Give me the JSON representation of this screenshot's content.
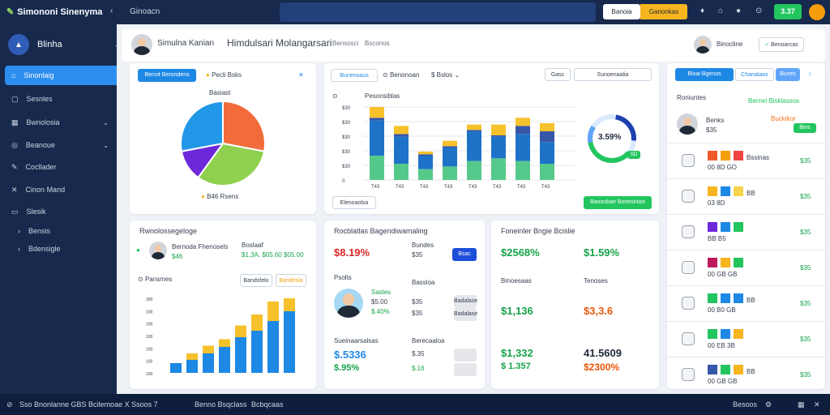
{
  "topbar": {
    "app_title": "Simononi Sinenyma",
    "crumb": "Ginoacn",
    "btn_primary": "Banoia",
    "btn_accent": "Ganonkas",
    "counter": "3.37"
  },
  "sidebar": {
    "title": "Blinha",
    "items": [
      {
        "label": "Sinonlaig",
        "icon": "home-icon"
      },
      {
        "label": "Sesnles",
        "icon": "square-icon"
      },
      {
        "label": "Bwnolosia",
        "icon": "chart-icon"
      },
      {
        "label": "Beanoue",
        "icon": "globe-icon"
      },
      {
        "label": "Cocllader",
        "icon": "wrench-icon"
      },
      {
        "label": "Cinon Mand",
        "icon": "tools-icon"
      },
      {
        "label": "Slesik",
        "icon": "doc-icon"
      },
      {
        "label": "Bensis",
        "icon": "chevron-right-icon"
      },
      {
        "label": "Bdensigle",
        "icon": "chevron-right-icon"
      }
    ]
  },
  "header": {
    "name": "Simulna Kanian",
    "title": "Himdulsari Molangarsari",
    "sub1": "Bensosci",
    "sub2": "Bsconos",
    "user": "Binocline",
    "action": "Benoarcas"
  },
  "pie_card": {
    "tab": "Benvit Berondens",
    "legend_top": "Pecli Bsks",
    "pie_title": "Basiast",
    "legend_bottom": "B46 Rsens",
    "chart_data": {
      "type": "pie",
      "slices": [
        {
          "value": 28,
          "color": "#f26b3a"
        },
        {
          "value": 32,
          "color": "#8fd14f"
        },
        {
          "value": 12,
          "color": "#6d28d9"
        },
        {
          "value": 28,
          "color": "#2197e8"
        }
      ]
    }
  },
  "bar_card": {
    "tab": "Bunenoaus",
    "filter1": "Benonoan",
    "filter2": "Bslos",
    "tag1": "Gasc",
    "tag2": "Sunoenaalia",
    "ylabel": "Pesonsiblas",
    "yticks": [
      "$30",
      "$30",
      "$30",
      "$30",
      "$30",
      "0"
    ],
    "xticks": [
      "T43",
      "T43",
      "T43",
      "T43",
      "T43",
      "T43",
      "T43",
      "T43"
    ],
    "btn_left": "Elenoaolsa",
    "btn_right": "Banonbae Bonesinise",
    "gauge": "3.59%",
    "gauge_badge": "SD",
    "chart_data": {
      "type": "bar",
      "categories": [
        "T43",
        "T43",
        "T43",
        "T43",
        "T43",
        "T43",
        "T43",
        "T43"
      ],
      "series": [
        {
          "values": [
            18,
            12,
            8,
            10,
            14,
            16,
            14,
            12
          ],
          "color": "#55c98a"
        },
        {
          "values": [
            26,
            20,
            10,
            14,
            22,
            16,
            20,
            16
          ],
          "color": "#1e73c9"
        },
        {
          "values": [
            2,
            2,
            1,
            1,
            1,
            1,
            6,
            8
          ],
          "color": "#3657a8"
        },
        {
          "values": [
            8,
            6,
            2,
            4,
            4,
            8,
            6,
            6
          ],
          "color": "#f6c12b"
        }
      ]
    }
  },
  "right_panel": {
    "tab1": "Bloai Bgenos",
    "tab2": "Chanalaos",
    "tab3": "Bunes",
    "head_left": "Roniuntes",
    "head_right": "Bernel Bisklassos",
    "person_name": "Benks",
    "person_value": "$35",
    "person_orange": "Buckikor",
    "person_badge": "Bins",
    "rows": [
      {
        "colors": [
          "#ef5a2a",
          "#f59e0b",
          "#ef4444"
        ],
        "vals": "00 8D GO",
        "extra": "Bssinas",
        "amt": "$35"
      },
      {
        "colors": [
          "#f6b51e",
          "#1e88e5",
          "#f6d34a"
        ],
        "vals": "03 8D",
        "extra": "BB",
        "amt": "$35"
      },
      {
        "colors": [
          "#6d28d9",
          "#1e88e5",
          "#22c55e"
        ],
        "vals": "BB B5",
        "extra": "",
        "amt": "$35"
      },
      {
        "colors": [
          "#be185d",
          "#f6b51e",
          "#22c55e"
        ],
        "vals": "00 GB GB",
        "extra": "",
        "amt": "$35"
      },
      {
        "colors": [
          "#22c55e",
          "#1e88e5",
          "#1e88e5"
        ],
        "vals": "00 B0 GB",
        "extra": "BB",
        "amt": "$35"
      },
      {
        "colors": [
          "#22c55e",
          "#1e88e5",
          "#f6b51e"
        ],
        "vals": "00 EB 3B",
        "extra": "",
        "amt": "$35"
      },
      {
        "colors": [
          "#3657a8",
          "#22c55e",
          "#f6b51e"
        ],
        "vals": "00 GB GB",
        "extra": "BB",
        "amt": "$35"
      }
    ]
  },
  "bottom_left": {
    "title": "Rwnolossegeloge",
    "person_label": "Bernoda Fhenosels",
    "person_value": "$46",
    "stat1": "Boslaaf",
    "stat2": "$1,3A. $05.60 $05.00",
    "chart_title": "Pansmes",
    "btn1": "Bandsfelo",
    "btn2": "Bandesla",
    "yticks": [
      "300",
      "100",
      "100",
      "100",
      "100",
      "100",
      "100"
    ],
    "chart_data": {
      "type": "bar",
      "categories": [
        "1",
        "2",
        "3",
        "4",
        "5",
        "6",
        "7",
        "8"
      ],
      "series": [
        {
          "values": [
            15,
            20,
            30,
            40,
            55,
            65,
            80,
            95
          ],
          "color": "#1e88e5"
        },
        {
          "values": [
            0,
            10,
            12,
            12,
            18,
            25,
            30,
            20
          ],
          "color": "#f6c12b"
        }
      ]
    }
  },
  "mid_card": {
    "title": "Rocblatlas Bagendiwamaling",
    "big": "$8.19%",
    "sub": "Bundes",
    "val": "$35",
    "pill": "Bsac",
    "sec_label": "Psolts",
    "sec_r1": "Bassloa",
    "rows": [
      {
        "label": "Badalase",
        "v": "$35"
      },
      {
        "label": "Badalase",
        "v": "$35"
      }
    ],
    "avatar_lbl": "Sasles",
    "avatar_v1": "$5.00",
    "avatar_v2": "$.40%",
    "b1": "Sueinaarsalsas",
    "b1v": "$.5336",
    "b2": "Berecaaloa",
    "b2v": "$.35",
    "b3": "$.95%",
    "b3v": "$.16"
  },
  "stat_card": {
    "title": "Foneinler Bngie Bcislie",
    "v1": "$2568%",
    "v2": "$1.59%",
    "c1": "Bmoesaas",
    "c2": "Tenoses",
    "c1v": "$1,136",
    "c2v": "$3,3.6",
    "c1b": "$1,332",
    "c2b": "41.5609",
    "c1c": "$ 1.357",
    "c2c": "$2300%"
  },
  "footer": {
    "left": "Sso Bnonlanne GBS Bcilemoae X Ssoos 7",
    "mid1": "Benno Bsqclass",
    "mid2": "Bcbqcaas",
    "right": "Besoos"
  }
}
